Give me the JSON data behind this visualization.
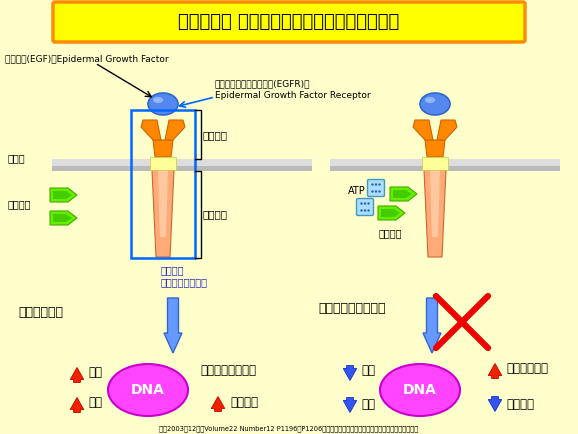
{
  "bg_color": "#FFFFCC",
  "title": "イレッサの ガン細胞の増殖を阻害する仕組み",
  "title_bg": "#FFFF00",
  "title_color": "#000000",
  "title_border": "#FF8C00",
  "footer": "呼吸2003年12月　Volume22 Number12 P1196～P1206　新免疫療法とイレッサ併用効果と成績　八木田旭邦",
  "label_ligand": "リガンド(EGF)：Epidermal Growth Factor",
  "label_egfr1": "上皮細胞成長因子受容体(EGFR)：",
  "label_egfr2": "Epidermal Growth Factor Receptor",
  "label_membrane": "細胞膜",
  "label_iressa_l": "イレッサ",
  "label_outer": "膜外部分",
  "label_inner": "膜内部分",
  "label_receptor1": "受容体型",
  "label_receptor2": "チロシンキナーゼ",
  "label_signal_l": "シグナル伝達",
  "label_signal_r": "シグナル伝達の阻害",
  "label_atp": "ATP",
  "label_iressa_r": "イレッサ",
  "label_proliferation": "増殖",
  "label_growth": "成長",
  "label_apoptosis_stop": "アポトーシス阻止",
  "label_angiogenesis": "血管新生",
  "label_apoptosis": "アポトーシス"
}
